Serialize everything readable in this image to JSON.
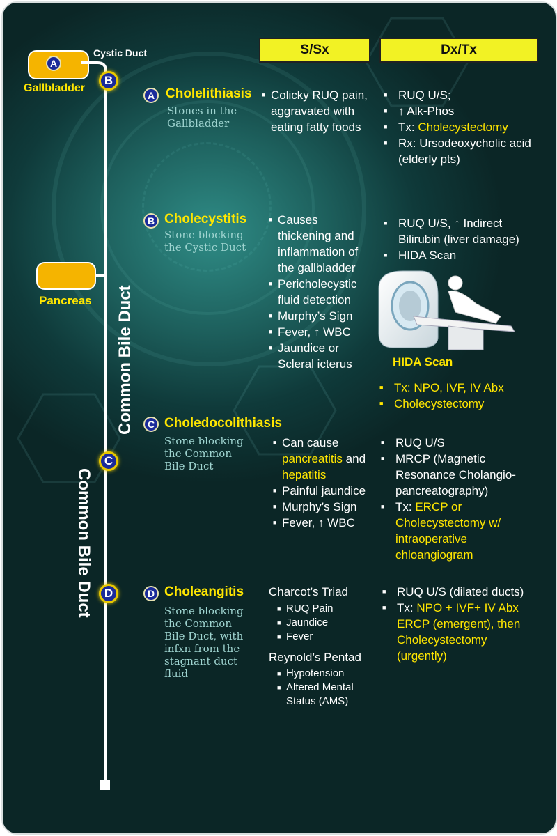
{
  "headers": {
    "ssx": "S/Sx",
    "dxtx": "Dx/Tx"
  },
  "anatomy": {
    "cystic_duct": "Cystic Duct",
    "gallbladder": "Gallbladder",
    "pancreas": "Pancreas",
    "cbd_label_1": "Common Bile Duct",
    "cbd_label_2": "Common Bile Duct"
  },
  "badges": {
    "a": "A",
    "b": "B",
    "c": "C",
    "d": "D"
  },
  "conditions": [
    {
      "letter": "A",
      "title": "Cholelithiasis",
      "subtitle": [
        "Stones in the",
        "Gallbladder"
      ],
      "ssx": [
        "Colicky RUQ pain, aggravated with eating fatty foods"
      ],
      "dx": [
        {
          "parts": [
            {
              "t": "RUQ U/S;"
            }
          ]
        },
        {
          "parts": [
            {
              "t": "↑ Alk-Phos"
            }
          ]
        },
        {
          "parts": [
            {
              "t": "Tx: "
            },
            {
              "t": "Cholecystectomy",
              "y": true
            }
          ]
        },
        {
          "parts": [
            {
              "t": "Rx: Ursodeoxycholic acid (elderly pts)"
            }
          ]
        }
      ]
    },
    {
      "letter": "B",
      "title": "Cholecystitis",
      "subtitle": [
        "Stone blocking",
        "the Cystic Duct"
      ],
      "ssx": [
        "Causes thickening and inflammation of the gallbladder",
        "Pericholecystic fluid detection",
        "Murphy’s Sign",
        "Fever, ↑  WBC",
        "Jaundice or Scleral icterus"
      ],
      "dx": [
        {
          "parts": [
            {
              "t": "RUQ U/S, ↑ Indirect Bilirubin (liver damage)"
            }
          ]
        },
        {
          "parts": [
            {
              "t": "HIDA Scan"
            }
          ]
        }
      ],
      "image_caption": "HIDA Scan",
      "tx": [
        "Tx: NPO, IVF, IV Abx",
        "Cholecystectomy"
      ]
    },
    {
      "letter": "C",
      "title": "Choledocolithiasis",
      "subtitle": [
        "Stone blocking",
        "the Common",
        "Bile Duct"
      ],
      "ssx": [
        [
          {
            "t": "Can cause "
          },
          {
            "t": "pancreatitis",
            "y": true
          },
          {
            "t": " and "
          },
          {
            "t": "hepatitis",
            "y": true
          }
        ],
        [
          {
            "t": "Painful jaundice"
          }
        ],
        [
          {
            "t": "Murphy’s Sign"
          }
        ],
        [
          {
            "t": "Fever, ↑  WBC"
          }
        ]
      ],
      "dx": [
        {
          "parts": [
            {
              "t": "RUQ U/S"
            }
          ]
        },
        {
          "parts": [
            {
              "t": "MRCP (Magnetic Resonance Cholangio-pancreatography)"
            }
          ]
        },
        {
          "parts": [
            {
              "t": "Tx: "
            },
            {
              "t": "ERCP or Cholecystectomy w/ intraoperative chloangiogram",
              "y": true
            }
          ]
        }
      ]
    },
    {
      "letter": "D",
      "title": "Choleangitis",
      "subtitle": [
        "Stone blocking",
        "the Common",
        "Bile Duct, with",
        "infxn from the",
        "stagnant duct",
        "fluid"
      ],
      "triad_title": "Charcot’s Triad",
      "triad": [
        "RUQ Pain",
        "Jaundice",
        "Fever"
      ],
      "pentad_title": "Reynold’s Pentad",
      "pentad": [
        "Hypotension",
        "Altered Mental Status (AMS)"
      ],
      "dx": [
        {
          "parts": [
            {
              "t": "RUQ U/S  (dilated ducts)"
            }
          ]
        },
        {
          "parts": [
            {
              "t": "Tx: "
            },
            {
              "t": "NPO + IVF+ IV Abx ERCP (emergent), then Cholecystectomy (urgently)",
              "y": true
            }
          ]
        }
      ]
    }
  ],
  "colors": {
    "accent_yellow": "#ffe600",
    "header_yellow": "#f2f224",
    "pill_orange": "#f5b400",
    "badge_blue": "#1a2a9a",
    "bg_teal": "#0f3a3a"
  }
}
